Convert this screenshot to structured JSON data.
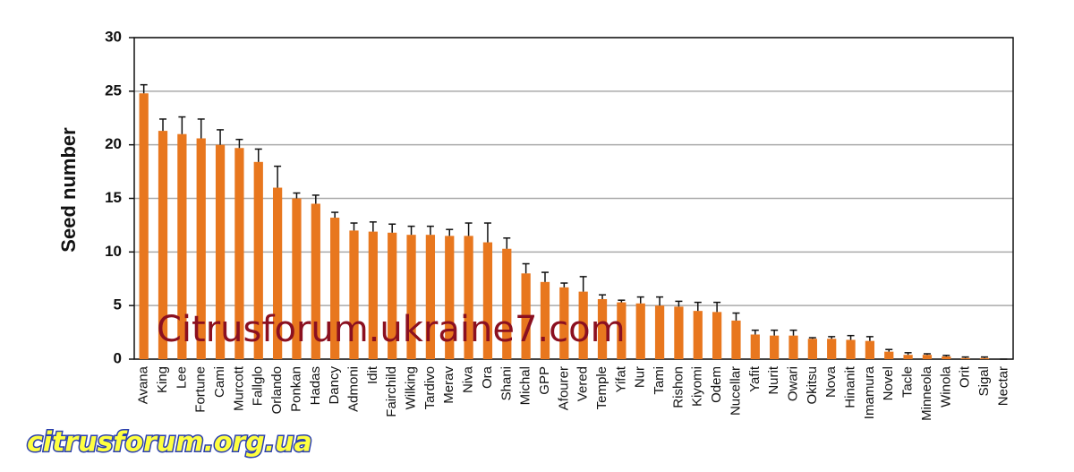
{
  "chart_data": {
    "type": "bar",
    "y_label": "Seed number",
    "categories": [
      "Avana",
      "King",
      "Lee",
      "Fortune",
      "Cami",
      "Murcott",
      "Fallglo",
      "Orlando",
      "Ponkan",
      "Hadas",
      "Dancy",
      "Admoni",
      "Idit",
      "Fairchild",
      "Wilking",
      "Tardivo",
      "Merav",
      "Niva",
      "Ora",
      "Shani",
      "Michal",
      "GPP",
      "Afourer",
      "Vered",
      "Temple",
      "Yifat",
      "Nur",
      "Tami",
      "Rishon",
      "Kiyomi",
      "Odem",
      "Nucellar",
      "Yafit",
      "Nurit",
      "Owari",
      "Okitsu",
      "Nova",
      "Hinanit",
      "Imamura",
      "Novel",
      "Tacle",
      "Minneola",
      "Winola",
      "Orit",
      "Sigal",
      "Nectar"
    ],
    "values": [
      24.8,
      21.3,
      21.0,
      20.6,
      20.0,
      19.7,
      18.4,
      16.0,
      15.0,
      14.5,
      13.2,
      12.0,
      11.9,
      11.8,
      11.6,
      11.6,
      11.5,
      11.5,
      10.9,
      10.3,
      8.0,
      7.2,
      6.7,
      6.3,
      5.6,
      5.3,
      5.2,
      5.0,
      4.9,
      4.5,
      4.4,
      3.6,
      2.3,
      2.2,
      2.2,
      1.9,
      1.9,
      1.8,
      1.7,
      0.7,
      0.4,
      0.4,
      0.25,
      0.1,
      0.1,
      0
    ],
    "errors": [
      0.8,
      1.1,
      1.6,
      1.8,
      1.4,
      0.8,
      1.2,
      2.0,
      0.5,
      0.8,
      0.5,
      0.7,
      0.9,
      0.8,
      0.8,
      0.8,
      0.6,
      1.2,
      1.8,
      1.0,
      0.9,
      0.9,
      0.4,
      1.4,
      0.4,
      0.2,
      0.6,
      0.8,
      0.5,
      0.8,
      0.9,
      0.7,
      0.4,
      0.5,
      0.5,
      0.1,
      0.2,
      0.4,
      0.4,
      0.2,
      0.2,
      0.1,
      0.1,
      0.1,
      0.1,
      0
    ],
    "color": "#e8771e",
    "ylim": [
      0,
      30
    ],
    "yticks": [
      0,
      5,
      10,
      15,
      20,
      25,
      30
    ],
    "grid": true
  },
  "watermarks": [
    "Citrusforum.ukraine7.com",
    "citrusforum.org.ua"
  ]
}
